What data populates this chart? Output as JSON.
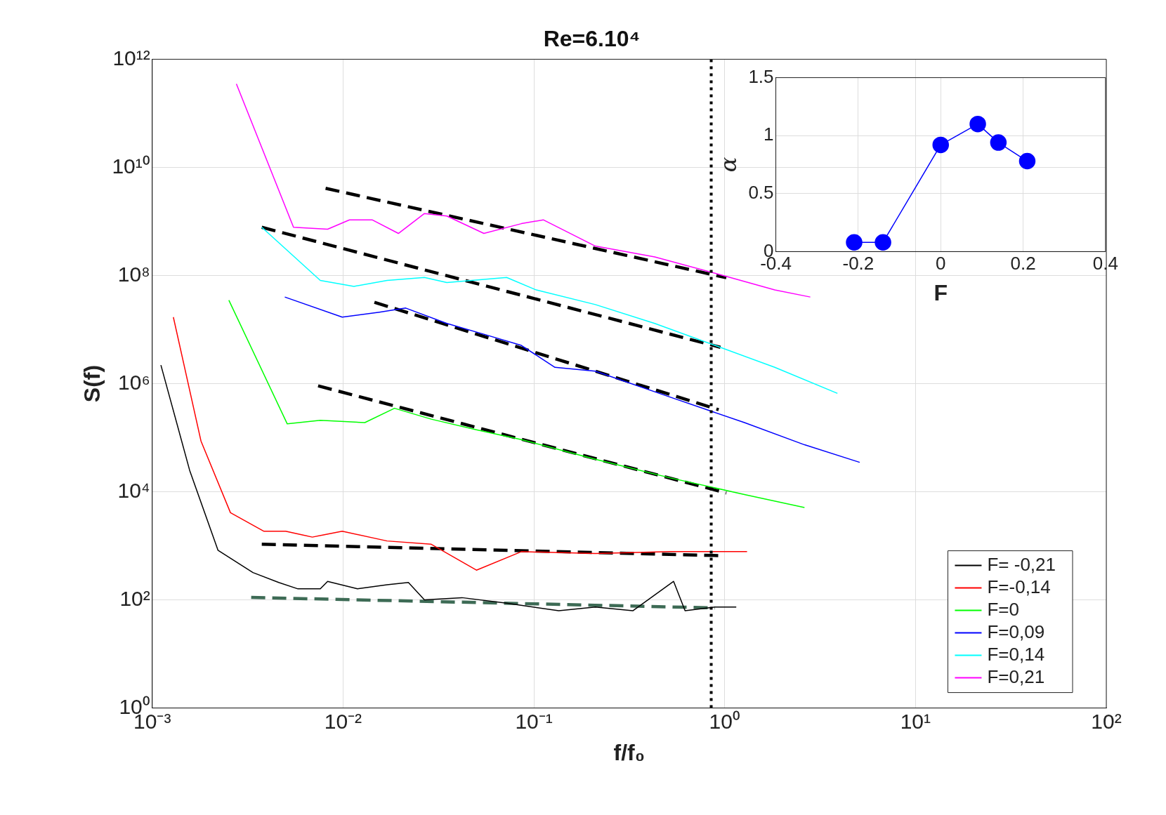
{
  "chart_data": [
    {
      "type": "line",
      "title": "Re=6.10⁴",
      "xlabel": "f/f₀",
      "ylabel": "S(f)",
      "log": "xy",
      "grid": true,
      "legend": "bottom right",
      "line_style": "solid",
      "marker": "none",
      "xlim": [
        0.001,
        100
      ],
      "ylim": [
        1,
        1000000000000
      ],
      "xticks": [
        {
          "value": 0.001,
          "label": "10⁻³"
        },
        {
          "value": 0.01,
          "label": "10⁻²"
        },
        {
          "value": 0.1,
          "label": "10⁻¹"
        },
        {
          "value": 1,
          "label": "10⁰"
        },
        {
          "value": 10,
          "label": "10¹"
        },
        {
          "value": 100,
          "label": "10²"
        }
      ],
      "yticks": [
        {
          "value": 1,
          "label": "10⁰"
        },
        {
          "value": 100,
          "label": "10²"
        },
        {
          "value": 10000,
          "label": "10⁴"
        },
        {
          "value": 1000000,
          "label": "10⁶"
        },
        {
          "value": 100000000,
          "label": "10⁸"
        },
        {
          "value": 10000000000,
          "label": "10¹⁰"
        },
        {
          "value": 1000000000000,
          "label": "10¹²"
        }
      ],
      "ref_lines": [
        {
          "axis": "x",
          "value": 0.85,
          "color": "#000000",
          "line_style": "dotted"
        }
      ],
      "series": [
        {
          "name": "F= -0,21",
          "color": "#000000",
          "x": [
            0.00111,
            0.00157,
            0.00221,
            0.00337,
            0.0046,
            0.0058,
            0.0076,
            0.0083,
            0.0119,
            0.017,
            0.022,
            0.0267,
            0.042,
            0.072,
            0.135,
            0.21,
            0.33,
            0.54,
            0.62,
            0.89,
            1.15
          ],
          "values": [
            2200000,
            25000,
            830,
            320,
            210,
            160,
            160,
            220,
            160,
            190,
            210,
            100,
            110,
            87,
            63,
            74,
            63,
            220,
            63,
            74,
            74
          ]
        },
        {
          "name": "F=-0,14",
          "color": "#ff0000",
          "x": [
            0.00129,
            0.0018,
            0.00257,
            0.00385,
            0.005,
            0.0069,
            0.0099,
            0.017,
            0.029,
            0.05,
            0.086,
            0.21,
            0.52,
            1.31
          ],
          "values": [
            17000000,
            87000,
            4100,
            1860,
            1860,
            1450,
            1860,
            1230,
            1070,
            355,
            780,
            720,
            780,
            780
          ]
        },
        {
          "name": "F=0",
          "color": "#00ff00",
          "x": [
            0.00252,
            0.0051,
            0.0076,
            0.013,
            0.0186,
            0.029,
            0.05,
            0.086,
            0.21,
            0.52,
            1.27,
            2.62
          ],
          "values": [
            35000000,
            180000,
            210000,
            190000,
            350000,
            220000,
            140000,
            92000,
            40000,
            18000,
            8900,
            5100
          ]
        },
        {
          "name": "F=0,09",
          "color": "#0000ff",
          "x": [
            0.00495,
            0.0099,
            0.0155,
            0.0213,
            0.035,
            0.0547,
            0.086,
            0.129,
            0.21,
            0.52,
            1.27,
            2.62,
            5.1
          ],
          "values": [
            40000000,
            17000000,
            21000000,
            25000000,
            13000000,
            8200000,
            5100000,
            2000000,
            1700000,
            560000,
            190000,
            74000,
            35000
          ]
        },
        {
          "name": "F=0,14",
          "color": "#00ffff",
          "x": [
            0.00375,
            0.0076,
            0.0114,
            0.017,
            0.0267,
            0.035,
            0.072,
            0.103,
            0.21,
            0.43,
            0.89,
            1.83,
            3.9
          ],
          "values": [
            780000000,
            81000000,
            63000000,
            81000000,
            92000000,
            74000000,
            92000000,
            54000000,
            29000000,
            13000000,
            5100000,
            2000000,
            660000
          ]
        },
        {
          "name": "F=0,21",
          "color": "#ff00ff",
          "x": [
            0.00276,
            0.0055,
            0.0083,
            0.0108,
            0.0142,
            0.0195,
            0.0267,
            0.035,
            0.0547,
            0.086,
            0.112,
            0.21,
            0.43,
            0.89,
            1.83,
            2.81
          ],
          "values": [
            350000000000,
            780000000,
            720000000,
            1070000000,
            1070000000,
            600000000,
            1400000000,
            1260000000,
            600000000,
            910000000,
            1070000000,
            350000000,
            220000000,
            110000000,
            54000000,
            40000000
          ]
        },
        {
          "type": "line",
          "line_style": "dashed",
          "color": "#3d6b55",
          "x": [
            0.0033,
            0.89
          ],
          "values": [
            111,
            71
          ]
        },
        {
          "type": "line",
          "line_style": "dashed",
          "color": "#000000",
          "x": [
            0.00375,
            0.93
          ],
          "values": [
            1070,
            660
          ]
        },
        {
          "type": "line",
          "line_style": "dashed",
          "color": "#000000",
          "x": [
            0.0074,
            1.02
          ],
          "values": [
            910000,
            9500
          ]
        },
        {
          "type": "line",
          "line_style": "dashed",
          "color": "#000000",
          "x": [
            0.0146,
            0.93
          ],
          "values": [
            32000000,
            330000
          ]
        },
        {
          "type": "line",
          "line_style": "dashed",
          "color": "#000000",
          "x": [
            0.00375,
            0.95
          ],
          "values": [
            780000000,
            4700000
          ]
        },
        {
          "type": "line",
          "line_style": "dashed",
          "color": "#000000",
          "x": [
            0.0081,
            1.02
          ],
          "values": [
            4100000000,
            91000000
          ]
        }
      ]
    },
    {
      "type": "line",
      "xlabel": "F",
      "ylabel": "α",
      "grid": true,
      "marker": "circle",
      "line_style": "solid",
      "xlim": [
        -0.4,
        0.4
      ],
      "ylim": [
        0,
        1.5
      ],
      "xticks": [
        -0.4,
        -0.2,
        0,
        0.2,
        0.4
      ],
      "yticks": [
        0,
        0.5,
        1,
        1.5
      ],
      "series": [
        {
          "color": "#0000ff",
          "x": [
            -0.21,
            -0.14,
            0,
            0.09,
            0.14,
            0.21
          ],
          "values": [
            0.08,
            0.08,
            0.92,
            1.1,
            0.94,
            0.78
          ]
        }
      ]
    }
  ]
}
